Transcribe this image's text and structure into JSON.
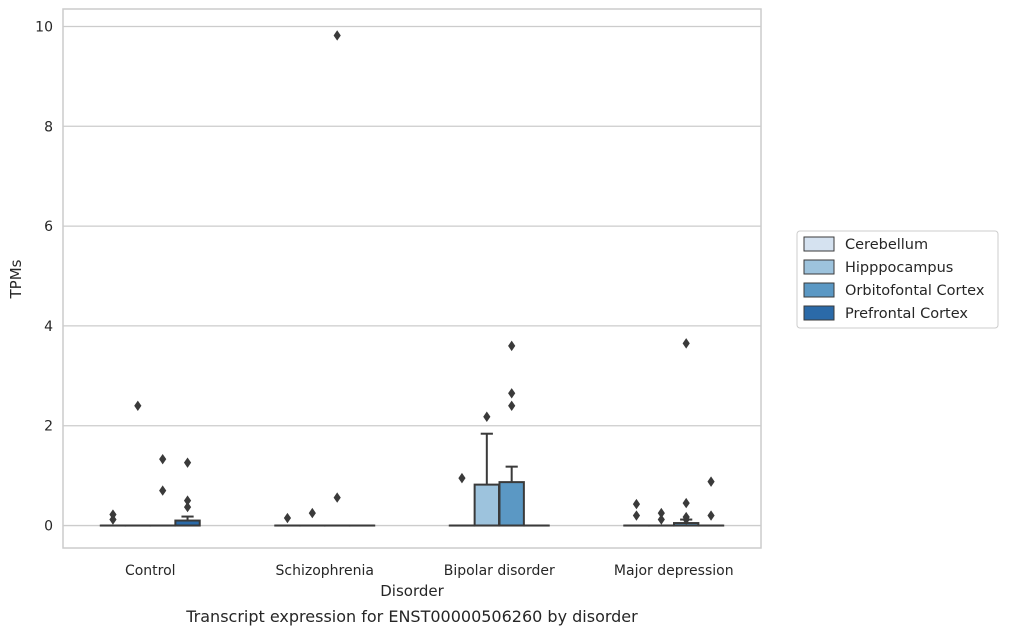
{
  "chart_data": {
    "type": "box",
    "caption": "Transcript expression for ENST00000506260 by disorder",
    "xlabel": "Disorder",
    "ylabel": "TPMs",
    "ylim": [
      -0.45,
      10.35
    ],
    "yticks": [
      0,
      2,
      4,
      6,
      8,
      10
    ],
    "grid": "horizontal",
    "legend_position": "right",
    "categories": [
      "Control",
      "Schizophrenia",
      "Bipolar disorder",
      "Major depression"
    ],
    "series": [
      {
        "name": "Cerebellum",
        "color": "#d5e2f0",
        "boxes": [
          {
            "q1": 0,
            "median": 0,
            "q3": 0,
            "whisker_low": 0,
            "whisker_high": 0,
            "outliers": [
              0.22,
              0.12
            ]
          },
          {
            "q1": 0,
            "median": 0,
            "q3": 0,
            "whisker_low": 0,
            "whisker_high": 0,
            "outliers": [
              0.15
            ]
          },
          {
            "q1": 0,
            "median": 0,
            "q3": 0,
            "whisker_low": 0,
            "whisker_high": 0,
            "outliers": [
              0.95
            ]
          },
          {
            "q1": 0,
            "median": 0,
            "q3": 0,
            "whisker_low": 0,
            "whisker_high": 0,
            "outliers": [
              0.43,
              0.2
            ]
          }
        ]
      },
      {
        "name": "Hipppocampus",
        "color": "#9dc3dd",
        "boxes": [
          {
            "q1": 0,
            "median": 0,
            "q3": 0,
            "whisker_low": 0,
            "whisker_high": 0,
            "outliers": [
              2.4
            ]
          },
          {
            "q1": 0,
            "median": 0,
            "q3": 0,
            "whisker_low": 0,
            "whisker_high": 0,
            "outliers": [
              0.25
            ]
          },
          {
            "q1": 0,
            "median": 0,
            "q3": 0.82,
            "whisker_low": 0,
            "whisker_high": 1.84,
            "outliers": [
              2.18
            ]
          },
          {
            "q1": 0,
            "median": 0,
            "q3": 0,
            "whisker_low": 0,
            "whisker_high": 0,
            "outliers": [
              0.25,
              0.12
            ]
          }
        ]
      },
      {
        "name": "Orbitofontal Cortex",
        "color": "#5b98c4",
        "boxes": [
          {
            "q1": 0,
            "median": 0,
            "q3": 0,
            "whisker_low": 0,
            "whisker_high": 0,
            "outliers": [
              1.33,
              0.7
            ]
          },
          {
            "q1": 0,
            "median": 0,
            "q3": 0,
            "whisker_low": 0,
            "whisker_high": 0,
            "outliers": [
              9.82,
              0.56
            ]
          },
          {
            "q1": 0,
            "median": 0,
            "q3": 0.87,
            "whisker_low": 0,
            "whisker_high": 1.18,
            "outliers": [
              3.6,
              2.65,
              2.4
            ]
          },
          {
            "q1": 0,
            "median": 0,
            "q3": 0.05,
            "whisker_low": 0,
            "whisker_high": 0.12,
            "outliers": [
              3.65,
              0.45,
              0.17,
              0.12
            ]
          }
        ]
      },
      {
        "name": "Prefrontal Cortex",
        "color": "#2b6aa8",
        "boxes": [
          {
            "q1": 0,
            "median": 0,
            "q3": 0.1,
            "whisker_low": 0,
            "whisker_high": 0.18,
            "outliers": [
              1.26,
              0.5,
              0.37
            ]
          },
          {
            "q1": 0,
            "median": 0,
            "q3": 0,
            "whisker_low": 0,
            "whisker_high": 0,
            "outliers": []
          },
          {
            "q1": 0,
            "median": 0,
            "q3": 0,
            "whisker_low": 0,
            "whisker_high": 0,
            "outliers": []
          },
          {
            "q1": 0,
            "median": 0,
            "q3": 0,
            "whisker_low": 0,
            "whisker_high": 0,
            "outliers": [
              0.88,
              0.2
            ]
          }
        ]
      }
    ]
  }
}
